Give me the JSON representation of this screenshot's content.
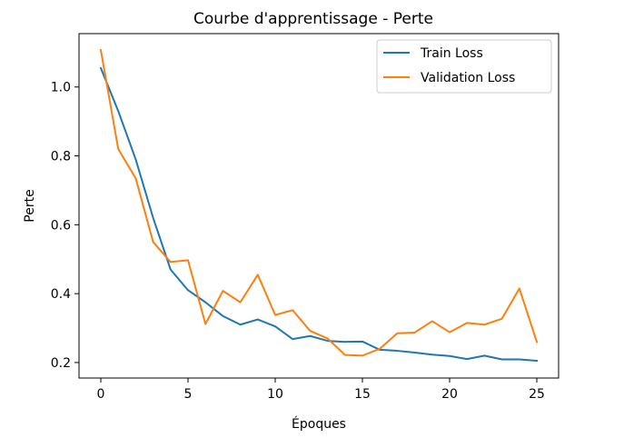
{
  "chart_data": {
    "type": "line",
    "title": "Courbe d'apprentissage - Perte",
    "xlabel": "Époques",
    "ylabel": "Perte",
    "xlim": [
      -1.25,
      26.25
    ],
    "ylim": [
      0.155,
      1.155
    ],
    "xticks": [
      0,
      5,
      10,
      15,
      20,
      25
    ],
    "yticks": [
      0.2,
      0.4,
      0.6,
      0.8,
      1.0
    ],
    "ytick_labels": [
      "0.2",
      "0.4",
      "0.6",
      "0.8",
      "1.0"
    ],
    "grid": false,
    "legend_position": "top-right",
    "x": [
      0,
      1,
      2,
      3,
      4,
      5,
      6,
      7,
      8,
      9,
      10,
      11,
      12,
      13,
      14,
      15,
      16,
      17,
      18,
      19,
      20,
      21,
      22,
      23,
      24,
      25
    ],
    "series": [
      {
        "name": "Train Loss",
        "color": "#1f77b4",
        "values": [
          1.055,
          0.93,
          0.79,
          0.62,
          0.47,
          0.41,
          0.375,
          0.335,
          0.31,
          0.325,
          0.305,
          0.268,
          0.277,
          0.263,
          0.26,
          0.261,
          0.237,
          0.234,
          0.229,
          0.223,
          0.219,
          0.21,
          0.22,
          0.209,
          0.209,
          0.205
        ]
      },
      {
        "name": "Validation Loss",
        "color": "#ff7f0e",
        "values": [
          1.107,
          0.82,
          0.735,
          0.55,
          0.492,
          0.497,
          0.312,
          0.408,
          0.375,
          0.455,
          0.338,
          0.352,
          0.292,
          0.27,
          0.222,
          0.22,
          0.24,
          0.285,
          0.287,
          0.32,
          0.288,
          0.315,
          0.31,
          0.327,
          0.415,
          0.26
        ]
      }
    ]
  }
}
